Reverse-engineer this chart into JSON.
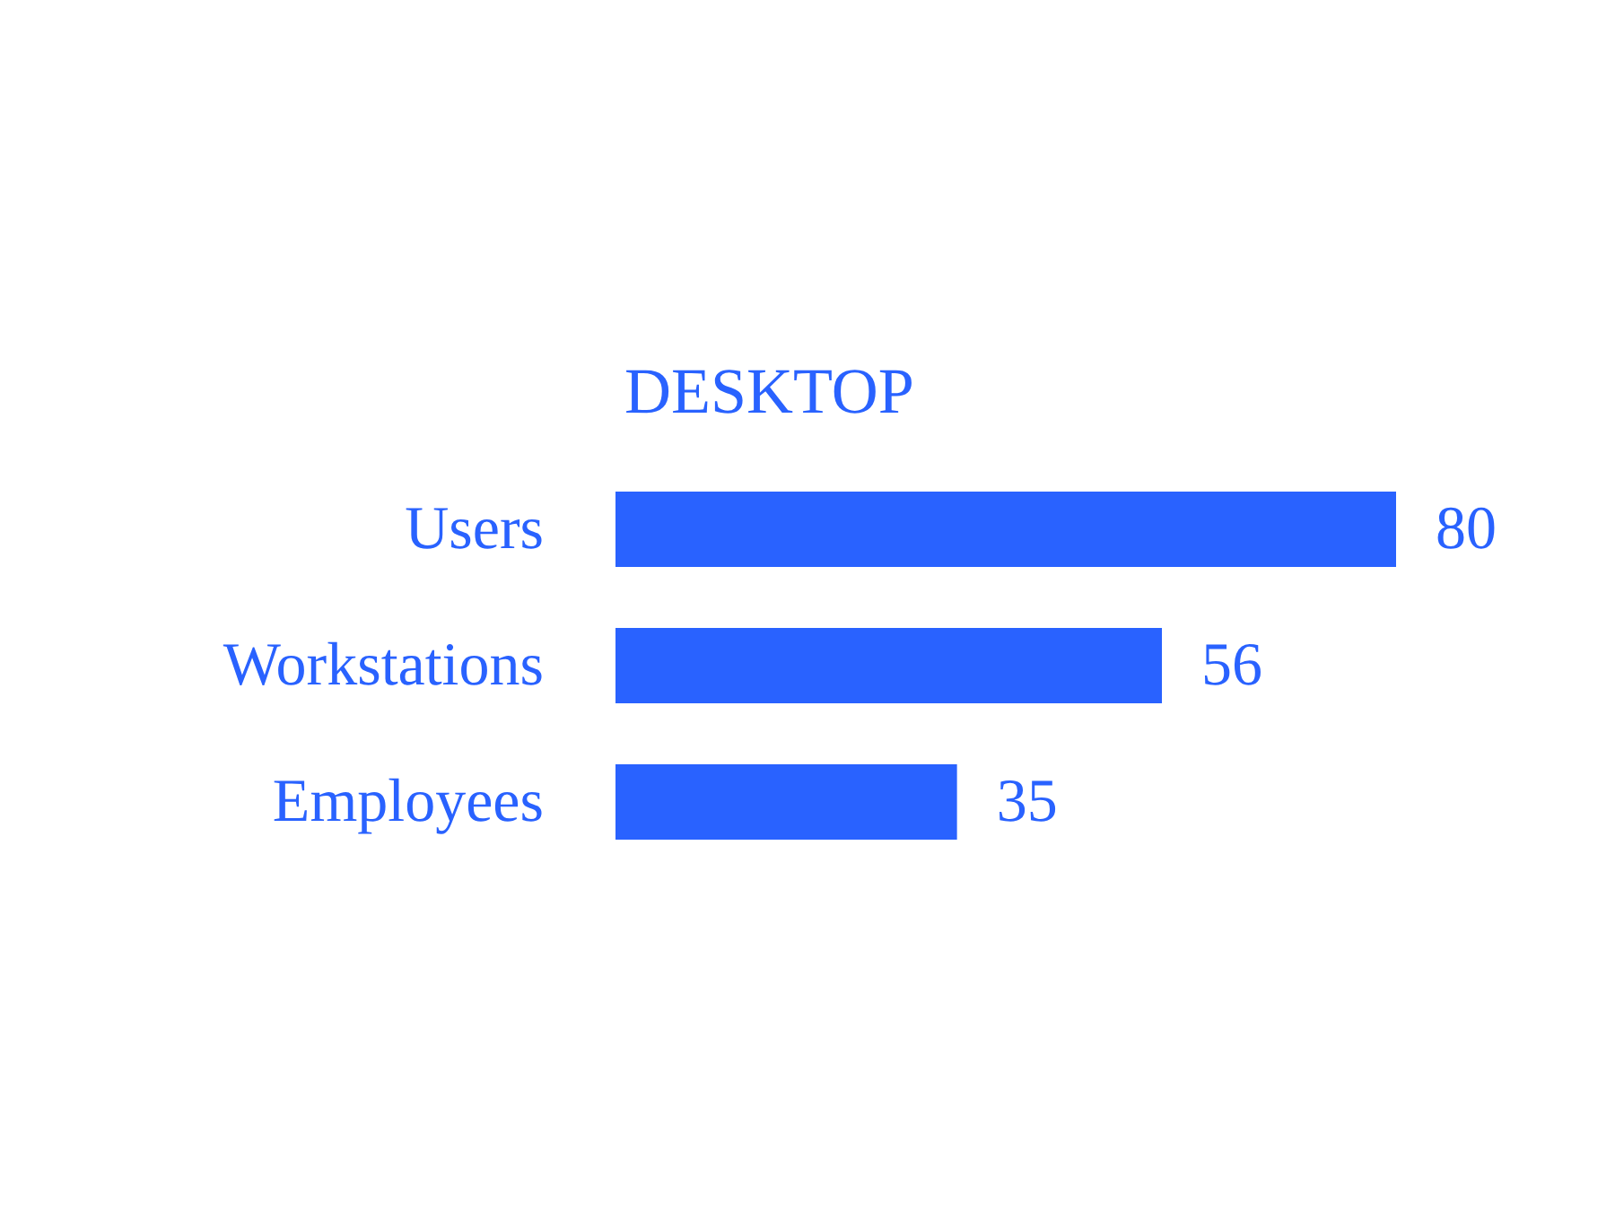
{
  "chart_data": {
    "type": "bar",
    "title": "DESKTOP",
    "orientation": "horizontal",
    "categories": [
      "Users",
      "Workstations",
      "Employees"
    ],
    "values": [
      80,
      56,
      35
    ],
    "color": "#2962ff",
    "data_labels": true
  }
}
